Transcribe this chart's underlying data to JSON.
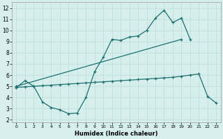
{
  "xlabel": "Humidex (Indice chaleur)",
  "xlim": [
    -0.5,
    23.5
  ],
  "ylim": [
    1.8,
    12.5
  ],
  "xticks": [
    0,
    1,
    2,
    3,
    4,
    5,
    6,
    7,
    8,
    9,
    10,
    11,
    12,
    13,
    14,
    15,
    16,
    17,
    18,
    19,
    20,
    21,
    22,
    23
  ],
  "yticks": [
    2,
    3,
    4,
    5,
    6,
    7,
    8,
    9,
    10,
    11,
    12
  ],
  "bg_color": "#d6efec",
  "grid_color": "#b8ddd9",
  "line_color": "#1e7070",
  "curve1_x": [
    0,
    1,
    2,
    3,
    4,
    5,
    6,
    7,
    8,
    9,
    10,
    11,
    12,
    13,
    14,
    15,
    16,
    17,
    18,
    19,
    20
  ],
  "curve1_y": [
    4.9,
    5.5,
    5.0,
    3.6,
    3.1,
    2.9,
    2.55,
    2.6,
    4.0,
    6.3,
    7.6,
    9.2,
    9.1,
    9.4,
    9.5,
    10.0,
    11.1,
    11.8,
    10.7,
    11.1,
    9.2
  ],
  "trend_x": [
    0,
    19
  ],
  "trend_y": [
    5.0,
    9.2
  ],
  "flat_x": [
    0,
    1,
    2,
    3,
    4,
    5,
    6,
    7,
    8,
    9,
    10,
    11,
    12,
    13,
    14,
    15,
    16,
    17,
    18,
    19,
    20,
    21,
    22,
    23
  ],
  "flat_y": [
    4.9,
    4.95,
    5.0,
    5.05,
    5.1,
    5.15,
    5.2,
    5.25,
    5.3,
    5.35,
    5.4,
    5.45,
    5.5,
    5.55,
    5.6,
    5.65,
    5.7,
    5.75,
    5.8,
    5.9,
    6.0,
    6.1,
    4.1,
    3.5
  ]
}
